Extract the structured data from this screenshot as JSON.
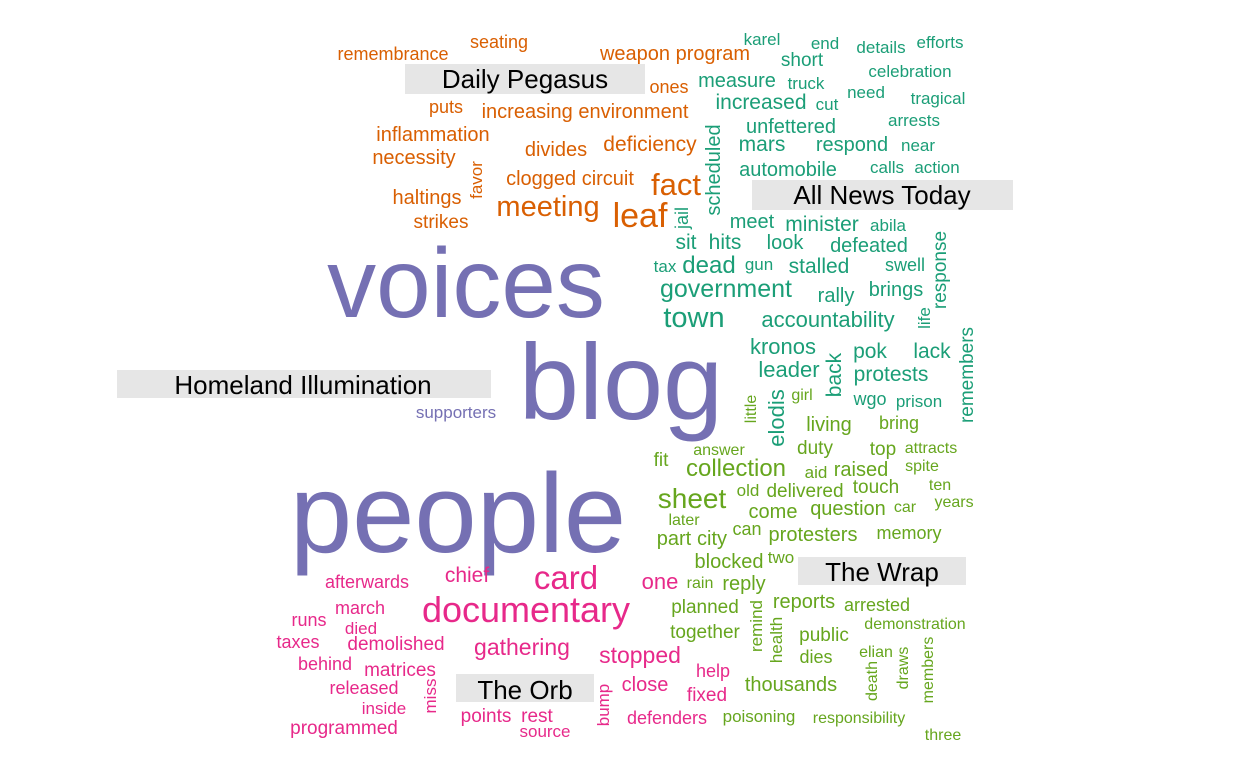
{
  "chart_data": {
    "type": "wordcloud",
    "colors": {
      "Daily Pegasus": "#d95f02",
      "All News Today": "#1b9e77",
      "Homeland Illumination": "#7570b3",
      "The Orb": "#e7298a",
      "The Wrap": "#66a61e"
    },
    "groups": [
      {
        "name": "Daily Pegasus",
        "words": [
          {
            "text": "remembrance",
            "weight": 1
          },
          {
            "text": "seating",
            "weight": 1
          },
          {
            "text": "weapon program",
            "weight": 1.2
          },
          {
            "text": "ones",
            "weight": 1
          },
          {
            "text": "puts",
            "weight": 1
          },
          {
            "text": "increasing environment",
            "weight": 1.1
          },
          {
            "text": "inflammation",
            "weight": 1.1
          },
          {
            "text": "necessity",
            "weight": 1.1
          },
          {
            "text": "divides",
            "weight": 1.1
          },
          {
            "text": "deficiency",
            "weight": 1.2
          },
          {
            "text": "favor",
            "weight": 1
          },
          {
            "text": "clogged circuit",
            "weight": 1.1
          },
          {
            "text": "haltings",
            "weight": 1.1
          },
          {
            "text": "strikes",
            "weight": 1
          },
          {
            "text": "fact",
            "weight": 1.8
          },
          {
            "text": "meeting",
            "weight": 1.8
          },
          {
            "text": "leaf",
            "weight": 2
          }
        ]
      },
      {
        "name": "All News Today",
        "words": [
          {
            "text": "karel",
            "weight": 1
          },
          {
            "text": "end",
            "weight": 1
          },
          {
            "text": "details",
            "weight": 1
          },
          {
            "text": "efforts",
            "weight": 1
          },
          {
            "text": "short",
            "weight": 1.1
          },
          {
            "text": "measure",
            "weight": 1.2
          },
          {
            "text": "truck",
            "weight": 1
          },
          {
            "text": "celebration",
            "weight": 1
          },
          {
            "text": "need",
            "weight": 1
          },
          {
            "text": "tragical",
            "weight": 1
          },
          {
            "text": "increased",
            "weight": 1.3
          },
          {
            "text": "cut",
            "weight": 1
          },
          {
            "text": "scheduled",
            "weight": 1.2
          },
          {
            "text": "unfettered",
            "weight": 1.2
          },
          {
            "text": "arrests",
            "weight": 1
          },
          {
            "text": "mars",
            "weight": 1.3
          },
          {
            "text": "respond",
            "weight": 1.2
          },
          {
            "text": "near",
            "weight": 1
          },
          {
            "text": "automobile",
            "weight": 1.2
          },
          {
            "text": "calls",
            "weight": 1
          },
          {
            "text": "action",
            "weight": 1
          },
          {
            "text": "jail",
            "weight": 1.1
          },
          {
            "text": "meet",
            "weight": 1.2
          },
          {
            "text": "minister",
            "weight": 1.3
          },
          {
            "text": "abila",
            "weight": 1
          },
          {
            "text": "response",
            "weight": 1.2
          },
          {
            "text": "sit",
            "weight": 1.3
          },
          {
            "text": "hits",
            "weight": 1.3
          },
          {
            "text": "look",
            "weight": 1.2
          },
          {
            "text": "defeated",
            "weight": 1.2
          },
          {
            "text": "tax",
            "weight": 1
          },
          {
            "text": "dead",
            "weight": 1.5
          },
          {
            "text": "gun",
            "weight": 1
          },
          {
            "text": "stalled",
            "weight": 1.3
          },
          {
            "text": "swell",
            "weight": 1.1
          },
          {
            "text": "government",
            "weight": 1.6
          },
          {
            "text": "rally",
            "weight": 1.2
          },
          {
            "text": "brings",
            "weight": 1.2
          },
          {
            "text": "life",
            "weight": 1
          },
          {
            "text": "town",
            "weight": 1.8
          },
          {
            "text": "accountability",
            "weight": 1.4
          },
          {
            "text": "remembers",
            "weight": 1.2
          },
          {
            "text": "kronos",
            "weight": 1.4
          },
          {
            "text": "pok",
            "weight": 1.3
          },
          {
            "text": "lack",
            "weight": 1.3
          },
          {
            "text": "leader",
            "weight": 1.4
          },
          {
            "text": "back",
            "weight": 1.3
          },
          {
            "text": "protests",
            "weight": 1.4
          },
          {
            "text": "wgo",
            "weight": 1.1
          },
          {
            "text": "prison",
            "weight": 1.1
          },
          {
            "text": "elodis",
            "weight": 1.3
          }
        ]
      },
      {
        "name": "Homeland Illumination",
        "words": [
          {
            "text": "voices",
            "weight": 6
          },
          {
            "text": "blog",
            "weight": 6
          },
          {
            "text": "people",
            "weight": 6
          },
          {
            "text": "supporters",
            "weight": 1
          }
        ]
      },
      {
        "name": "The Orb",
        "words": [
          {
            "text": "afterwards",
            "weight": 1.2
          },
          {
            "text": "chief",
            "weight": 1.4
          },
          {
            "text": "card",
            "weight": 2.3
          },
          {
            "text": "one",
            "weight": 1.5
          },
          {
            "text": "documentary",
            "weight": 2.3
          },
          {
            "text": "march",
            "weight": 1.2
          },
          {
            "text": "runs",
            "weight": 1.2
          },
          {
            "text": "died",
            "weight": 1.2
          },
          {
            "text": "demolished",
            "weight": 1.3
          },
          {
            "text": "taxes",
            "weight": 1.2
          },
          {
            "text": "gathering",
            "weight": 1.6
          },
          {
            "text": "stopped",
            "weight": 1.6
          },
          {
            "text": "behind",
            "weight": 1.1
          },
          {
            "text": "matrices",
            "weight": 1.3
          },
          {
            "text": "help",
            "weight": 1.2
          },
          {
            "text": "released",
            "weight": 1.2
          },
          {
            "text": "miss",
            "weight": 1.2
          },
          {
            "text": "close",
            "weight": 1.3
          },
          {
            "text": "fixed",
            "weight": 1.3
          },
          {
            "text": "inside",
            "weight": 1.1
          },
          {
            "text": "bump",
            "weight": 1.2
          },
          {
            "text": "points",
            "weight": 1.2
          },
          {
            "text": "rest",
            "weight": 1.2
          },
          {
            "text": "defenders",
            "weight": 1.2
          },
          {
            "text": "programmed",
            "weight": 1.2
          },
          {
            "text": "source",
            "weight": 1.1
          }
        ]
      },
      {
        "name": "The Wrap",
        "words": [
          {
            "text": "little",
            "weight": 1.1
          },
          {
            "text": "girl",
            "weight": 1
          },
          {
            "text": "living",
            "weight": 1.2
          },
          {
            "text": "bring",
            "weight": 1.1
          },
          {
            "text": "answer",
            "weight": 1
          },
          {
            "text": "duty",
            "weight": 1.2
          },
          {
            "text": "top",
            "weight": 1.2
          },
          {
            "text": "attracts",
            "weight": 1
          },
          {
            "text": "fit",
            "weight": 1.2
          },
          {
            "text": "collection",
            "weight": 1.6
          },
          {
            "text": "aid",
            "weight": 1
          },
          {
            "text": "raised",
            "weight": 1.3
          },
          {
            "text": "spite",
            "weight": 1
          },
          {
            "text": "sheet",
            "weight": 1.9
          },
          {
            "text": "old",
            "weight": 1
          },
          {
            "text": "delivered",
            "weight": 1.3
          },
          {
            "text": "touch",
            "weight": 1.3
          },
          {
            "text": "ten",
            "weight": 1
          },
          {
            "text": "years",
            "weight": 1
          },
          {
            "text": "later",
            "weight": 1.1
          },
          {
            "text": "come",
            "weight": 1.3
          },
          {
            "text": "question",
            "weight": 1.3
          },
          {
            "text": "car",
            "weight": 1
          },
          {
            "text": "can",
            "weight": 1.2
          },
          {
            "text": "protesters",
            "weight": 1.3
          },
          {
            "text": "memory",
            "weight": 1.1
          },
          {
            "text": "part",
            "weight": 1.3
          },
          {
            "text": "city",
            "weight": 1.3
          },
          {
            "text": "blocked",
            "weight": 1.3
          },
          {
            "text": "two",
            "weight": 1
          },
          {
            "text": "rain",
            "weight": 1
          },
          {
            "text": "reply",
            "weight": 1.3
          },
          {
            "text": "remind",
            "weight": 1.2
          },
          {
            "text": "reports",
            "weight": 1.3
          },
          {
            "text": "arrested",
            "weight": 1.2
          },
          {
            "text": "planned",
            "weight": 1.3
          },
          {
            "text": "health",
            "weight": 1.2
          },
          {
            "text": "public",
            "weight": 1.3
          },
          {
            "text": "demonstration",
            "weight": 1.1
          },
          {
            "text": "together",
            "weight": 1.3
          },
          {
            "text": "dies",
            "weight": 1.2
          },
          {
            "text": "members",
            "weight": 1.1
          },
          {
            "text": "elian",
            "weight": 1
          },
          {
            "text": "death",
            "weight": 1
          },
          {
            "text": "draws",
            "weight": 1
          },
          {
            "text": "thousands",
            "weight": 1.3
          },
          {
            "text": "poisoning",
            "weight": 1.1
          },
          {
            "text": "responsibility",
            "weight": 1.1
          },
          {
            "text": "three",
            "weight": 1
          }
        ]
      }
    ]
  }
}
